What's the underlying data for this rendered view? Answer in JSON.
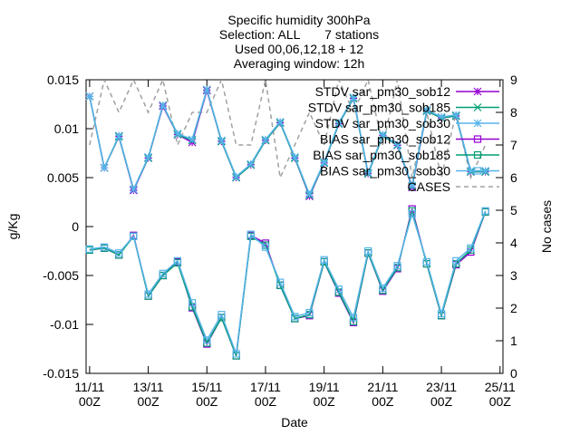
{
  "chart_data": {
    "type": "line",
    "title": "Specific humidity 300hPa",
    "subtitles": [
      "Selection: ALL       7 stations",
      "Used 00,06,12,18 + 12",
      "Averaging window: 12h"
    ],
    "x_label": "Date",
    "y_label": "g/Kg",
    "y2_label": "No cases",
    "x": [
      0,
      0.5,
      1,
      1.5,
      2,
      2.5,
      3,
      3.5,
      4,
      4.5,
      5,
      5.5,
      6,
      6.5,
      7,
      7.5,
      8,
      8.5,
      9,
      9.5,
      10,
      10.5,
      11,
      11.5,
      12,
      12.5,
      13,
      13.5
    ],
    "xlim": [
      -0.12,
      14.1
    ],
    "xticks": [
      {
        "value": 0,
        "label": "11/11\n00Z"
      },
      {
        "value": 2,
        "label": "13/11\n00Z"
      },
      {
        "value": 4,
        "label": "15/11\n00Z"
      },
      {
        "value": 6,
        "label": "17/11\n00Z"
      },
      {
        "value": 8,
        "label": "19/11\n00Z"
      },
      {
        "value": 10,
        "label": "21/11\n00Z"
      },
      {
        "value": 12,
        "label": "23/11\n00Z"
      },
      {
        "value": 14,
        "label": "25/11\n00Z"
      }
    ],
    "ylim": [
      -0.015,
      0.015
    ],
    "yticks": [
      -0.015,
      -0.01,
      -0.005,
      0,
      0.005,
      0.01,
      0.015
    ],
    "y2lim": [
      0,
      9
    ],
    "y2ticks": [
      0,
      1,
      2,
      3,
      4,
      5,
      6,
      7,
      8,
      9
    ],
    "legend": "top-right",
    "series": [
      {
        "name": "STDV sar_pm30_sob12",
        "color": "#9400d3",
        "marker": "star",
        "values": [
          0.0133,
          0.006,
          0.0092,
          0.0037,
          0.007,
          0.0123,
          0.0094,
          0.0086,
          0.0139,
          0.0087,
          0.005,
          0.0063,
          0.0088,
          0.0106,
          0.007,
          0.0031,
          0.0065,
          0.0105,
          0.0131,
          0.0054,
          0.0093,
          0.0083,
          0.004,
          0.0118,
          0.0111,
          0.0113,
          0.0056,
          0.0056
        ]
      },
      {
        "name": "STDV sar_pm30_sob185",
        "color": "#009e73",
        "marker": "cross",
        "values": [
          0.0133,
          0.006,
          0.0092,
          0.0038,
          0.007,
          0.0124,
          0.0094,
          0.0088,
          0.014,
          0.0087,
          0.005,
          0.0063,
          0.0088,
          0.0106,
          0.007,
          0.0032,
          0.0065,
          0.0105,
          0.0131,
          0.0054,
          0.0093,
          0.0083,
          0.0041,
          0.0118,
          0.0111,
          0.0113,
          0.0056,
          0.0056
        ]
      },
      {
        "name": "STDV sar_pm30_sob30",
        "color": "#56b4e9",
        "marker": "star",
        "values": [
          0.0133,
          0.006,
          0.0093,
          0.0038,
          0.0071,
          0.0124,
          0.0095,
          0.0089,
          0.014,
          0.0088,
          0.0051,
          0.0064,
          0.0089,
          0.0107,
          0.0071,
          0.0033,
          0.0066,
          0.0106,
          0.0132,
          0.0055,
          0.0094,
          0.0084,
          0.0042,
          0.0119,
          0.0112,
          0.0114,
          0.0057,
          0.0057
        ]
      },
      {
        "name": "BIAS sar_pm30_sob12",
        "color": "#9400d3",
        "marker": "square",
        "values": [
          -0.0024,
          -0.0022,
          -0.0029,
          -0.0009,
          -0.0071,
          -0.005,
          -0.0036,
          -0.0083,
          -0.012,
          -0.0093,
          -0.0132,
          -0.0009,
          -0.0017,
          -0.006,
          -0.0094,
          -0.0091,
          -0.0036,
          -0.0068,
          -0.0098,
          -0.0027,
          -0.0066,
          -0.0043,
          0.0018,
          -0.0038,
          -0.0091,
          -0.0039,
          -0.0026,
          0.0015
        ]
      },
      {
        "name": "BIAS sar_pm30_sob185",
        "color": "#009e73",
        "marker": "square",
        "values": [
          -0.0024,
          -0.0022,
          -0.0029,
          -0.001,
          -0.0071,
          -0.005,
          -0.0037,
          -0.0082,
          -0.0119,
          -0.0093,
          -0.0132,
          -0.001,
          -0.0019,
          -0.006,
          -0.0094,
          -0.009,
          -0.0036,
          -0.0067,
          -0.0097,
          -0.0027,
          -0.0065,
          -0.0042,
          0.0016,
          -0.0038,
          -0.0091,
          -0.0038,
          -0.0024,
          0.0015
        ]
      },
      {
        "name": "BIAS sar_pm30_sob30",
        "color": "#56b4e9",
        "marker": "square",
        "values": [
          -0.0023,
          -0.0021,
          -0.0027,
          -0.001,
          -0.0069,
          -0.0048,
          -0.0035,
          -0.0078,
          -0.0116,
          -0.009,
          -0.013,
          -0.0008,
          -0.0021,
          -0.0057,
          -0.0092,
          -0.0088,
          -0.0034,
          -0.0064,
          -0.0093,
          -0.0025,
          -0.0063,
          -0.004,
          0.0013,
          -0.0036,
          -0.0089,
          -0.0035,
          -0.0022,
          0.0016
        ]
      },
      {
        "name": "CASES",
        "color": "#a0a0a0",
        "marker": "none",
        "dash": true,
        "axis": "y2",
        "values": [
          7,
          9,
          8,
          9,
          8,
          9,
          7,
          8,
          8,
          9,
          7,
          7,
          9,
          6,
          7,
          8,
          7,
          9,
          8,
          9,
          7,
          9,
          6,
          8,
          6,
          8,
          6,
          7
        ]
      }
    ]
  }
}
